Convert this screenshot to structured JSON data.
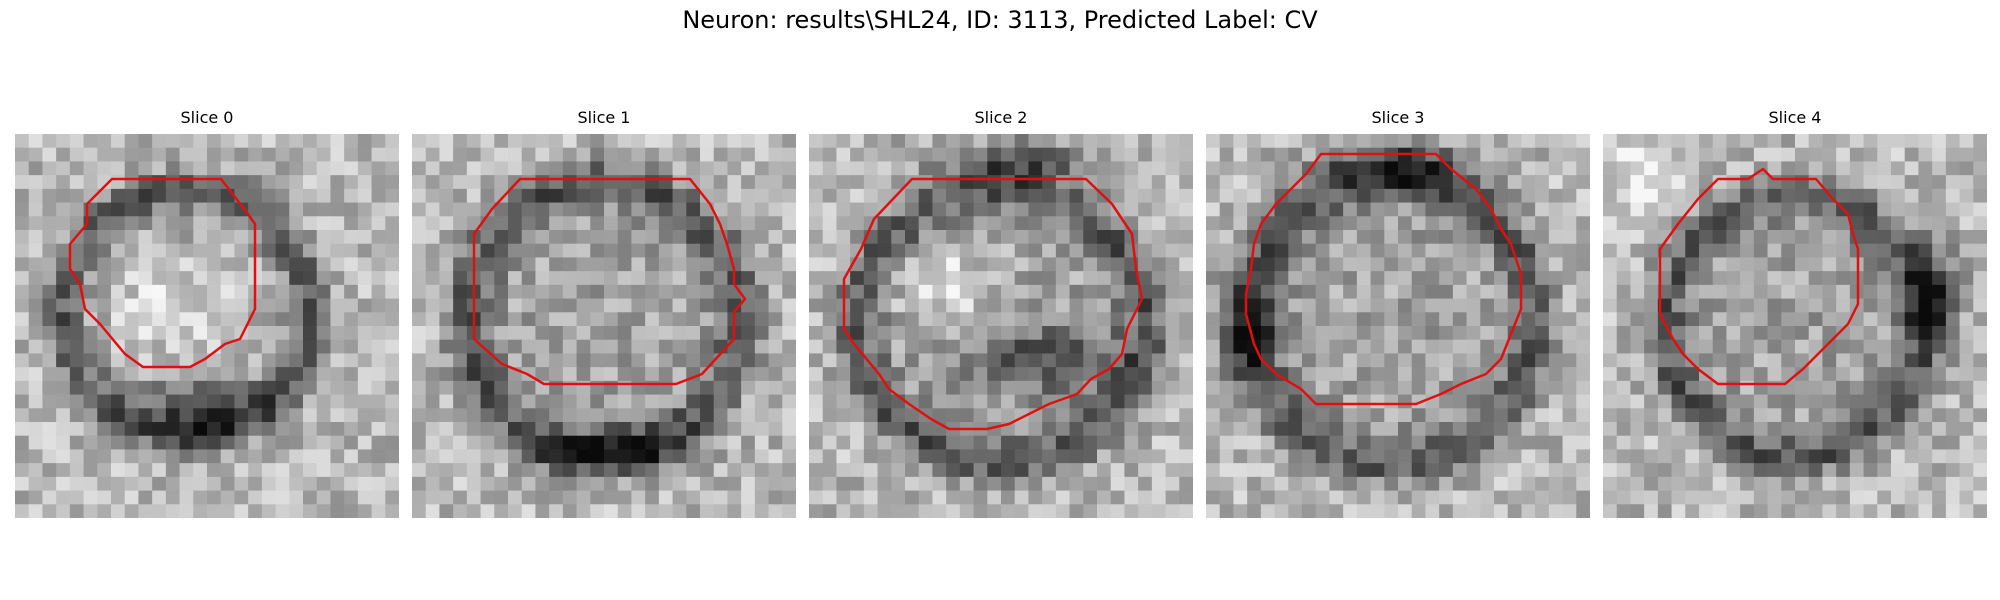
{
  "figure": {
    "title": "Neuron: results\\SHL24, ID: 3113, Predicted Label: CV"
  },
  "panels": [
    {
      "title": "Slice 0"
    },
    {
      "title": "Slice 1"
    },
    {
      "title": "Slice 2"
    },
    {
      "title": "Slice 3"
    },
    {
      "title": "Slice 4"
    }
  ],
  "colors": {
    "contour": "#e01010",
    "background": "#ffffff"
  }
}
